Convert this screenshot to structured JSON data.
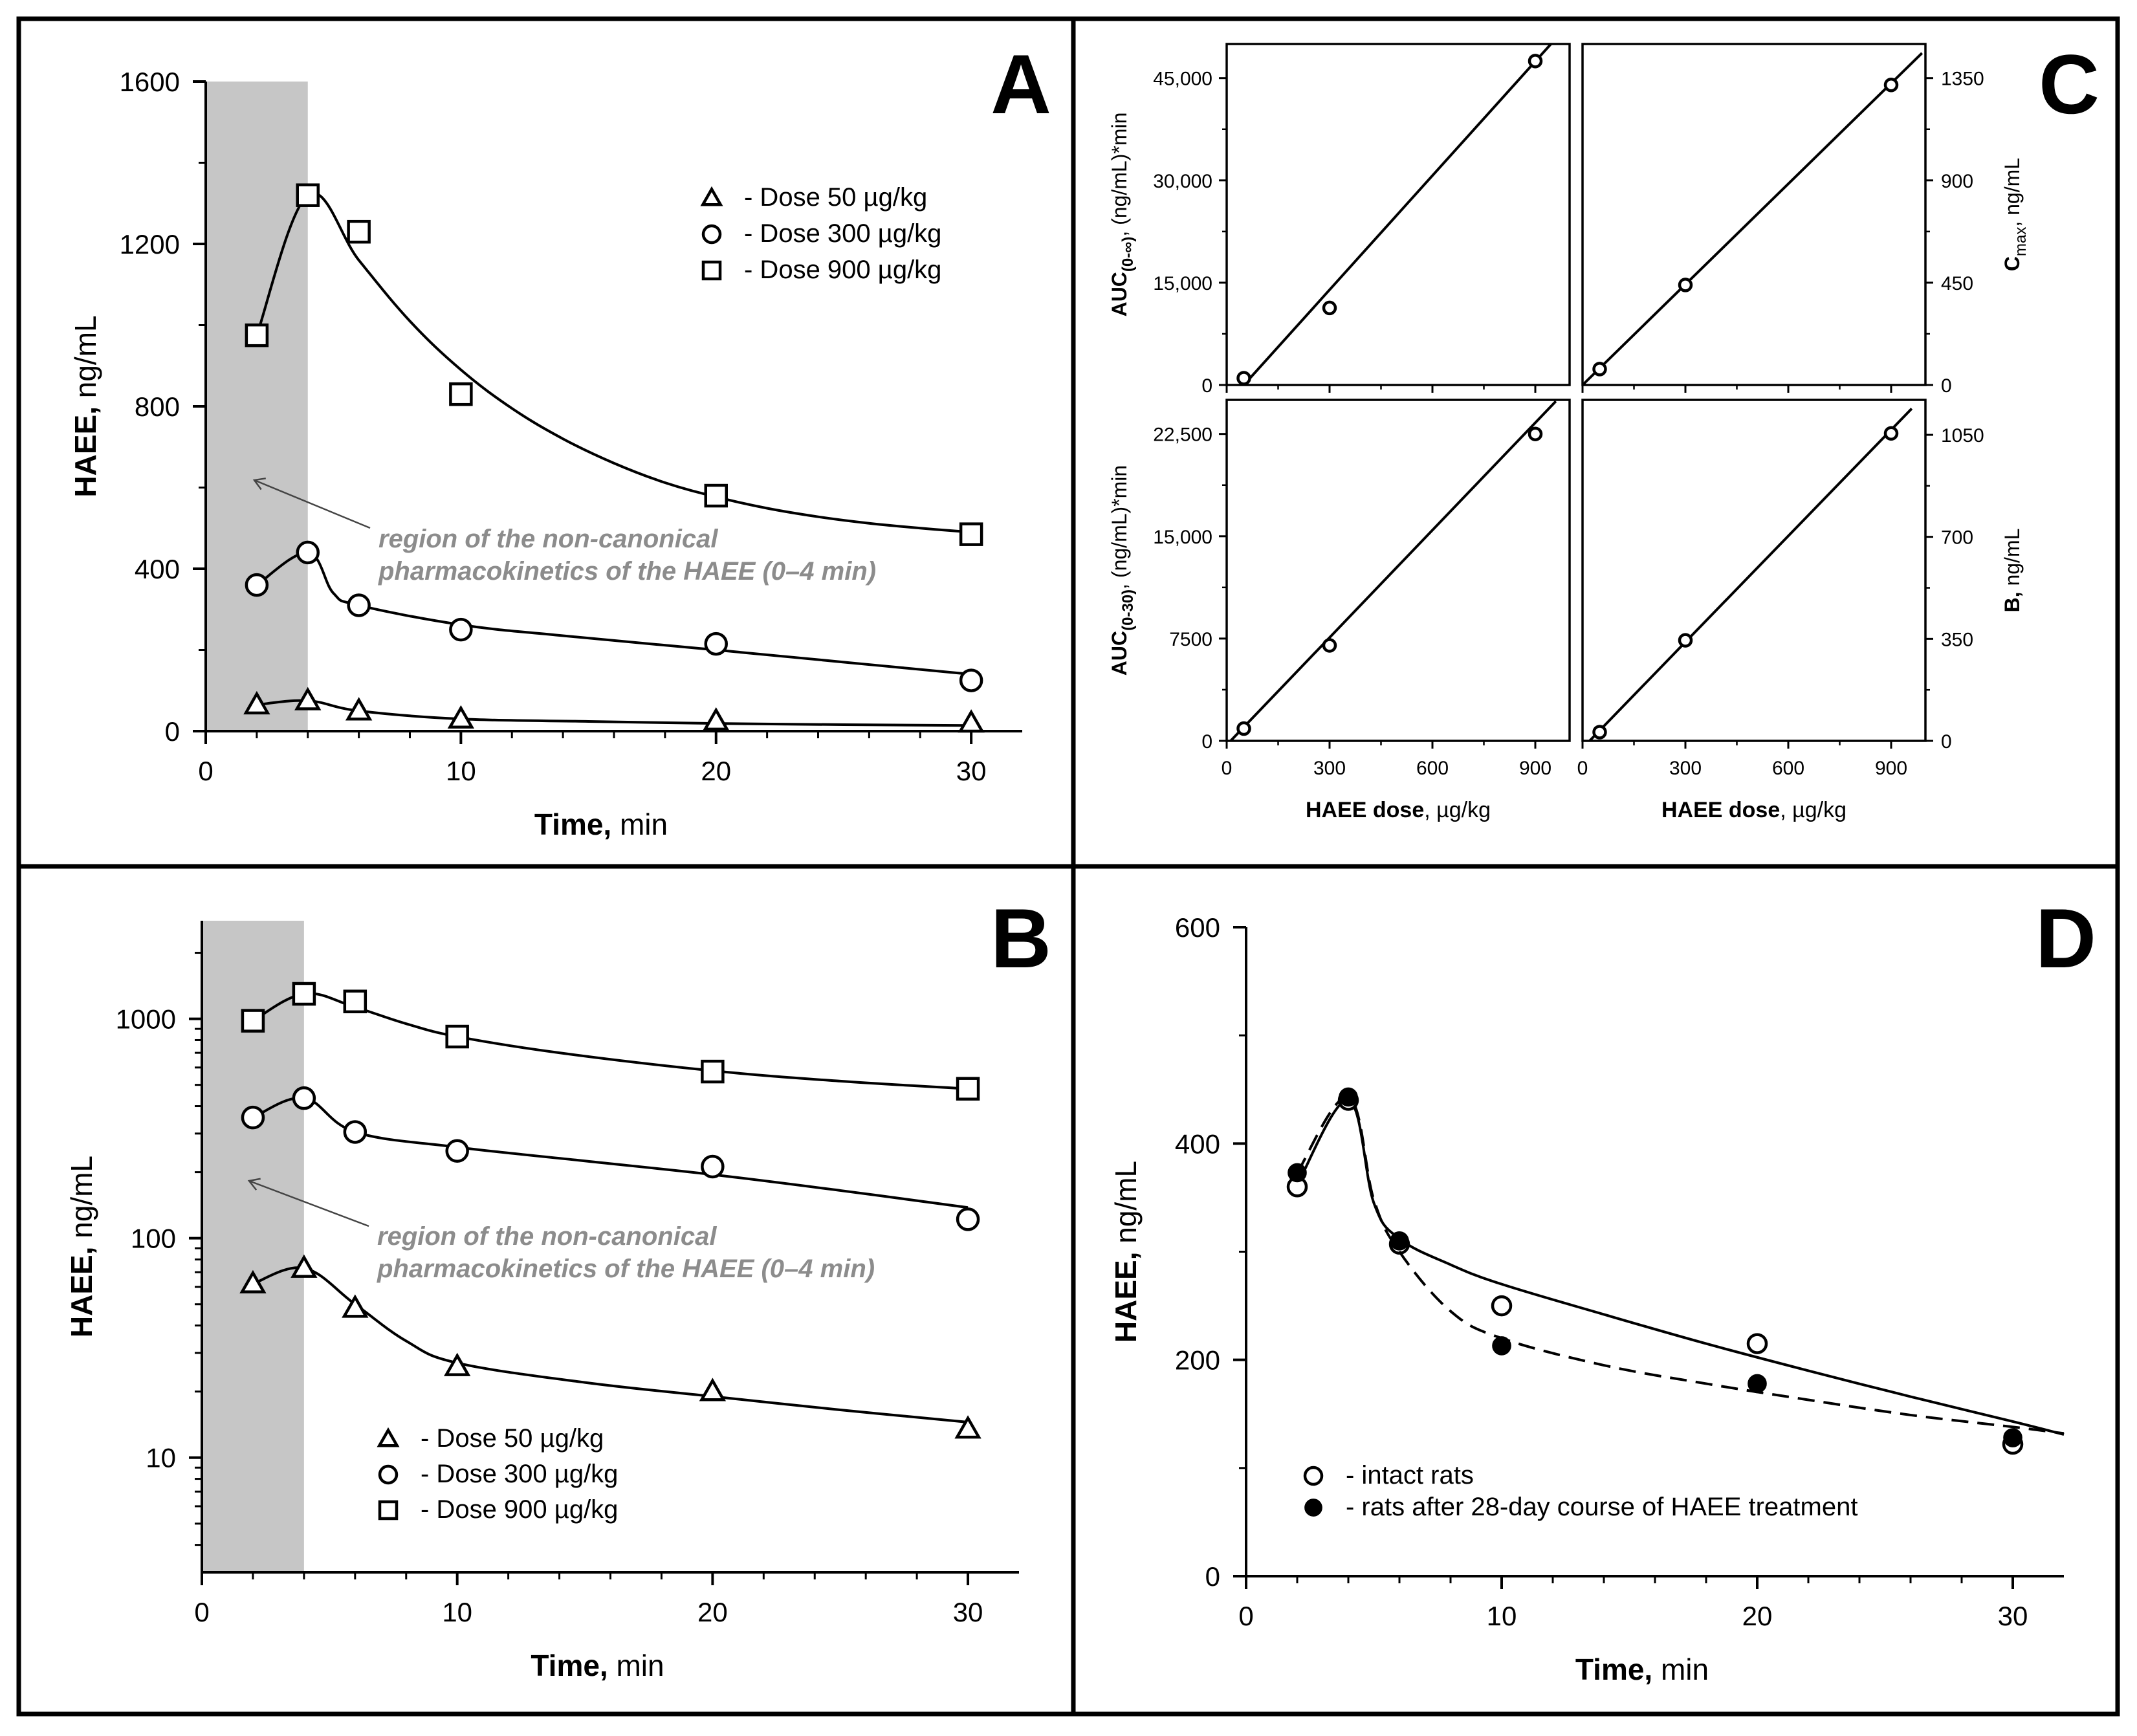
{
  "chart_data": [
    {
      "id": "A",
      "type": "line",
      "panel_label": "A",
      "xlabel_bold": "Time,",
      "xlabel_rest": " min",
      "ylabel_bold": "HAEE,",
      "ylabel_rest": " ng/mL",
      "xlim": [
        0,
        32
      ],
      "ylim": [
        0,
        1600
      ],
      "xticks": [
        0,
        10,
        20,
        30
      ],
      "xtick_labels": [
        "0",
        "10",
        "20",
        "30"
      ],
      "yticks": [
        0,
        400,
        800,
        1200,
        1600
      ],
      "ytick_labels": [
        "0",
        "400",
        "800",
        "1200",
        "1600"
      ],
      "shaded_region": [
        0,
        4
      ],
      "annotation": [
        "region of the non-canonical",
        "pharmacokinetics of the HAEE (0–4 min)"
      ],
      "legend_position": "top-right",
      "series": [
        {
          "name": "Dose 900 µg/kg",
          "legend_label": "-  Dose 900 µg/kg",
          "marker": "square",
          "x": [
            2,
            4,
            6,
            10,
            20,
            30
          ],
          "y": [
            975,
            1320,
            1230,
            830,
            580,
            485
          ],
          "fit": [
            [
              2,
              975
            ],
            [
              4,
              1320
            ],
            [
              6,
              1160
            ],
            [
              8,
              1010
            ],
            [
              10,
              890
            ],
            [
              12,
              795
            ],
            [
              14,
              720
            ],
            [
              16,
              660
            ],
            [
              18,
              612
            ],
            [
              20,
              577
            ],
            [
              22,
              549
            ],
            [
              24,
              528
            ],
            [
              26,
              512
            ],
            [
              28,
              500
            ],
            [
              30,
              490
            ]
          ]
        },
        {
          "name": "Dose 300 µg/kg",
          "legend_label": "-  Dose 300 µg/kg",
          "marker": "circle",
          "x": [
            2,
            4,
            6,
            10,
            20,
            30
          ],
          "y": [
            360,
            440,
            310,
            250,
            215,
            125
          ],
          "fit": [
            [
              2,
              360
            ],
            [
              4,
              440
            ],
            [
              5,
              340
            ],
            [
              6,
              310
            ],
            [
              10,
              262
            ],
            [
              14,
              235
            ],
            [
              20,
              200
            ],
            [
              25,
              170
            ],
            [
              30,
              140
            ]
          ]
        },
        {
          "name": "Dose 50 µg/kg",
          "legend_label": "-  Dose   50 µg/kg",
          "marker": "triangle",
          "x": [
            2,
            4,
            6,
            10,
            20,
            30
          ],
          "y": [
            65,
            75,
            50,
            30,
            25,
            20
          ],
          "fit": [
            [
              2,
              65
            ],
            [
              4,
              75
            ],
            [
              6,
              50
            ],
            [
              10,
              30
            ],
            [
              15,
              24
            ],
            [
              20,
              19
            ],
            [
              25,
              16
            ],
            [
              30,
              14
            ]
          ]
        }
      ]
    },
    {
      "id": "B",
      "type": "line",
      "panel_label": "B",
      "xlabel_bold": "Time,",
      "xlabel_rest": " min",
      "ylabel_bold": "HAEE,",
      "ylabel_rest": " ng/mL",
      "yscale": "log",
      "xlim": [
        0,
        32
      ],
      "ylim": [
        3,
        2800
      ],
      "xticks": [
        0,
        10,
        20,
        30
      ],
      "xtick_labels": [
        "0",
        "10",
        "20",
        "30"
      ],
      "yticks": [
        10,
        100,
        1000
      ],
      "ytick_labels": [
        "10",
        "100",
        "1000"
      ],
      "shaded_region": [
        0,
        4
      ],
      "annotation": [
        "region of the non-canonical",
        "pharmacokinetics of the HAEE (0–4 min)"
      ],
      "legend_position": "bottom-left",
      "series": [
        {
          "name": "Dose 900 µg/kg",
          "legend_label": "-  Dose 900 µg/kg",
          "marker": "square",
          "x": [
            2,
            4,
            6,
            10,
            20,
            30
          ],
          "y": [
            980,
            1300,
            1200,
            830,
            575,
            480
          ],
          "fit": [
            [
              2,
              980
            ],
            [
              4,
              1300
            ],
            [
              6,
              1130
            ],
            [
              8,
              950
            ],
            [
              10,
              830
            ],
            [
              14,
              700
            ],
            [
              20,
              580
            ],
            [
              25,
              520
            ],
            [
              30,
              480
            ]
          ]
        },
        {
          "name": "Dose 300 µg/kg",
          "legend_label": "-  Dose 300 µg/kg",
          "marker": "circle",
          "x": [
            2,
            4,
            6,
            10,
            20,
            30
          ],
          "y": [
            355,
            435,
            305,
            250,
            212,
            122
          ],
          "fit": [
            [
              2,
              355
            ],
            [
              4,
              435
            ],
            [
              6,
              305
            ],
            [
              10,
              260
            ],
            [
              15,
              225
            ],
            [
              20,
              195
            ],
            [
              25,
              165
            ],
            [
              30,
              138
            ]
          ]
        },
        {
          "name": "Dose 50 µg/kg",
          "legend_label": "-  Dose    50 µg/kg",
          "marker": "triangle",
          "x": [
            2,
            4,
            6,
            10,
            20,
            30
          ],
          "y": [
            62,
            73,
            48,
            26,
            20,
            13.5
          ],
          "fit": [
            [
              2,
              62
            ],
            [
              4,
              73
            ],
            [
              6,
              50
            ],
            [
              8,
              34
            ],
            [
              10,
              27
            ],
            [
              15,
              22
            ],
            [
              20,
              19
            ],
            [
              25,
              16.5
            ],
            [
              30,
              14.5
            ]
          ]
        }
      ]
    },
    {
      "id": "C1",
      "type": "scatter",
      "panel_label": "C",
      "ylabel_bold": "AUC",
      "ylabel_sub": "(0-∞)",
      "ylabel_rest": ",  (ng/mL)*min",
      "xlim": [
        0,
        1000
      ],
      "ylim": [
        0,
        50000
      ],
      "yticks": [
        0,
        15000,
        30000,
        45000
      ],
      "ytick_labels": [
        "0",
        "15,000",
        "30,000",
        "45,000"
      ],
      "x": [
        50,
        300,
        900
      ],
      "y": [
        1000,
        11300,
        47500
      ],
      "fit": [
        [
          50,
          0
        ],
        [
          960,
          50800
        ]
      ]
    },
    {
      "id": "C2",
      "type": "scatter",
      "ylabel_bold": "C",
      "ylabel_sub": "max",
      "ylabel_rest": ",  ng/mL",
      "xlim": [
        0,
        1000
      ],
      "ylim": [
        0,
        1500
      ],
      "yticks": [
        0,
        450,
        900,
        1350
      ],
      "ytick_labels": [
        "0",
        "450",
        "900",
        "1350"
      ],
      "x": [
        50,
        300,
        900
      ],
      "y": [
        70,
        440,
        1320
      ],
      "fit": [
        [
          0,
          0
        ],
        [
          990,
          1460
        ]
      ]
    },
    {
      "id": "C3",
      "type": "scatter",
      "xlabel_bold": "HAEE dose",
      "xlabel_rest": ", µg/kg",
      "ylabel_bold": "AUC",
      "ylabel_sub": "(0-30)",
      "ylabel_rest": ",  (ng/mL)*min",
      "xlim": [
        0,
        1000
      ],
      "ylim": [
        0,
        25000
      ],
      "xticks": [
        0,
        300,
        600,
        900
      ],
      "xtick_labels": [
        "0",
        "300",
        "600",
        "900"
      ],
      "yticks": [
        0,
        7500,
        15000,
        22500
      ],
      "ytick_labels": [
        "0",
        "7500",
        "15,000",
        "22,500"
      ],
      "x": [
        50,
        300,
        900
      ],
      "y": [
        900,
        7000,
        22500
      ],
      "fit": [
        [
          0,
          -300
        ],
        [
          960,
          24900
        ]
      ]
    },
    {
      "id": "C4",
      "type": "scatter",
      "xlabel_bold": "HAEE dose",
      "xlabel_rest": ", µg/kg",
      "ylabel_bold": "B,",
      "ylabel_rest": "  ng/mL",
      "xlim": [
        0,
        1000
      ],
      "ylim": [
        0,
        1170
      ],
      "xticks": [
        0,
        300,
        600,
        900
      ],
      "xtick_labels": [
        "0",
        "300",
        "600",
        "900"
      ],
      "yticks": [
        0,
        350,
        700,
        1050
      ],
      "ytick_labels": [
        "0",
        "350",
        "700",
        "1050"
      ],
      "x": [
        50,
        300,
        900
      ],
      "y": [
        30,
        345,
        1055
      ],
      "fit": [
        [
          0,
          -25
        ],
        [
          960,
          1140
        ]
      ]
    },
    {
      "id": "D",
      "type": "line",
      "panel_label": "D",
      "xlabel_bold": "Time,",
      "xlabel_rest": " min",
      "ylabel_bold": "HAEE,",
      "ylabel_rest": " ng/mL",
      "xlim": [
        0,
        32
      ],
      "ylim": [
        0,
        600
      ],
      "xticks": [
        0,
        10,
        20,
        30
      ],
      "xtick_labels": [
        "0",
        "10",
        "20",
        "30"
      ],
      "yticks": [
        0,
        200,
        400,
        600
      ],
      "ytick_labels": [
        "0",
        "200",
        "400",
        "600"
      ],
      "legend_position": "bottom-left",
      "series": [
        {
          "name": "intact rats",
          "legend_label": "-  intact rats",
          "marker": "circle-open",
          "line": "solid",
          "x": [
            2,
            4,
            6,
            10,
            20,
            30
          ],
          "y": [
            360,
            440,
            307,
            250,
            215,
            122
          ],
          "fit": [
            [
              2,
              362
            ],
            [
              4,
              440
            ],
            [
              5,
              345
            ],
            [
              6,
              312
            ],
            [
              8,
              288
            ],
            [
              10,
              270
            ],
            [
              14,
              242
            ],
            [
              18,
              215
            ],
            [
              22,
              190
            ],
            [
              26,
              166
            ],
            [
              30,
              143
            ],
            [
              32,
              131
            ]
          ]
        },
        {
          "name": "rats after 28-day course of HAEE treatment",
          "legend_label": "-  rats after 28-day course of HAEE treatment",
          "marker": "circle-filled",
          "line": "dashed",
          "x": [
            2,
            4,
            6,
            10,
            20,
            30
          ],
          "y": [
            373,
            443,
            310,
            213,
            178,
            128
          ],
          "fit": [
            [
              2,
              373
            ],
            [
              4,
              443
            ],
            [
              5,
              348
            ],
            [
              6,
              300
            ],
            [
              8,
              245
            ],
            [
              10,
              220
            ],
            [
              14,
              195
            ],
            [
              18,
              178
            ],
            [
              22,
              163
            ],
            [
              26,
              149
            ],
            [
              30,
              138
            ],
            [
              32,
              132
            ]
          ]
        }
      ]
    }
  ]
}
